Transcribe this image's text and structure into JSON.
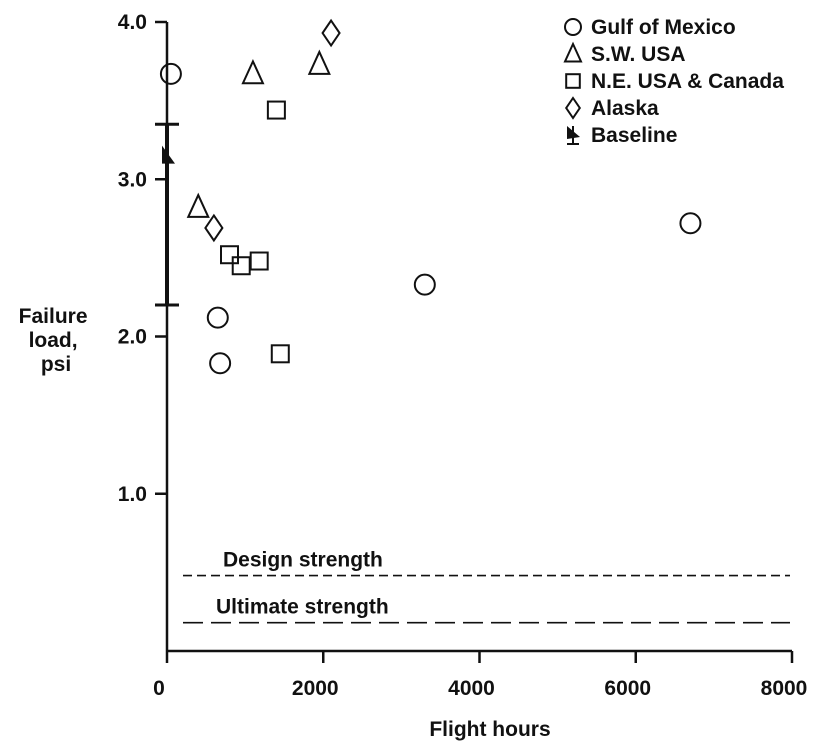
{
  "chart_data": {
    "type": "scatter",
    "title": "",
    "xlabel": "Flight hours",
    "ylabel": [
      "Failure",
      "load,",
      "psi"
    ],
    "xlim": [
      0,
      8000
    ],
    "ylim": [
      0,
      4.0
    ],
    "x_ticks": [
      0,
      2000,
      4000,
      6000,
      8000
    ],
    "x_tick_labels": [
      "0",
      "2000",
      "4000",
      "6000",
      "8000"
    ],
    "y_ticks": [
      1.0,
      2.0,
      3.0,
      4.0
    ],
    "y_tick_labels": [
      "1.0",
      "2.0",
      "3.0",
      "4.0"
    ],
    "grid": false,
    "legend_position": "top-right",
    "series": [
      {
        "name": "Gulf of Mexico",
        "marker": "circle",
        "points": [
          [
            50,
            3.67
          ],
          [
            650,
            2.12
          ],
          [
            680,
            1.83
          ],
          [
            3300,
            2.33
          ],
          [
            6700,
            2.72
          ]
        ]
      },
      {
        "name": "S.W. USA",
        "marker": "triangle",
        "points": [
          [
            400,
            2.82
          ],
          [
            1100,
            3.67
          ],
          [
            1950,
            3.73
          ]
        ]
      },
      {
        "name": "N.E. USA & Canada",
        "marker": "square",
        "points": [
          [
            800,
            2.52
          ],
          [
            950,
            2.45
          ],
          [
            1180,
            2.48
          ],
          [
            1400,
            3.44
          ],
          [
            1450,
            1.89
          ]
        ]
      },
      {
        "name": "Alaska",
        "marker": "diamond",
        "points": [
          [
            600,
            2.69
          ],
          [
            2100,
            3.93
          ]
        ]
      }
    ],
    "baseline": {
      "name": "Baseline",
      "x": 0,
      "mean": 3.15,
      "low": 2.2,
      "high": 3.35
    },
    "reference_lines": [
      {
        "label": "Design strength",
        "y": 0.48,
        "style": "short-dash"
      },
      {
        "label": "Ultimate strength",
        "y": 0.18,
        "style": "long-dash"
      }
    ]
  }
}
